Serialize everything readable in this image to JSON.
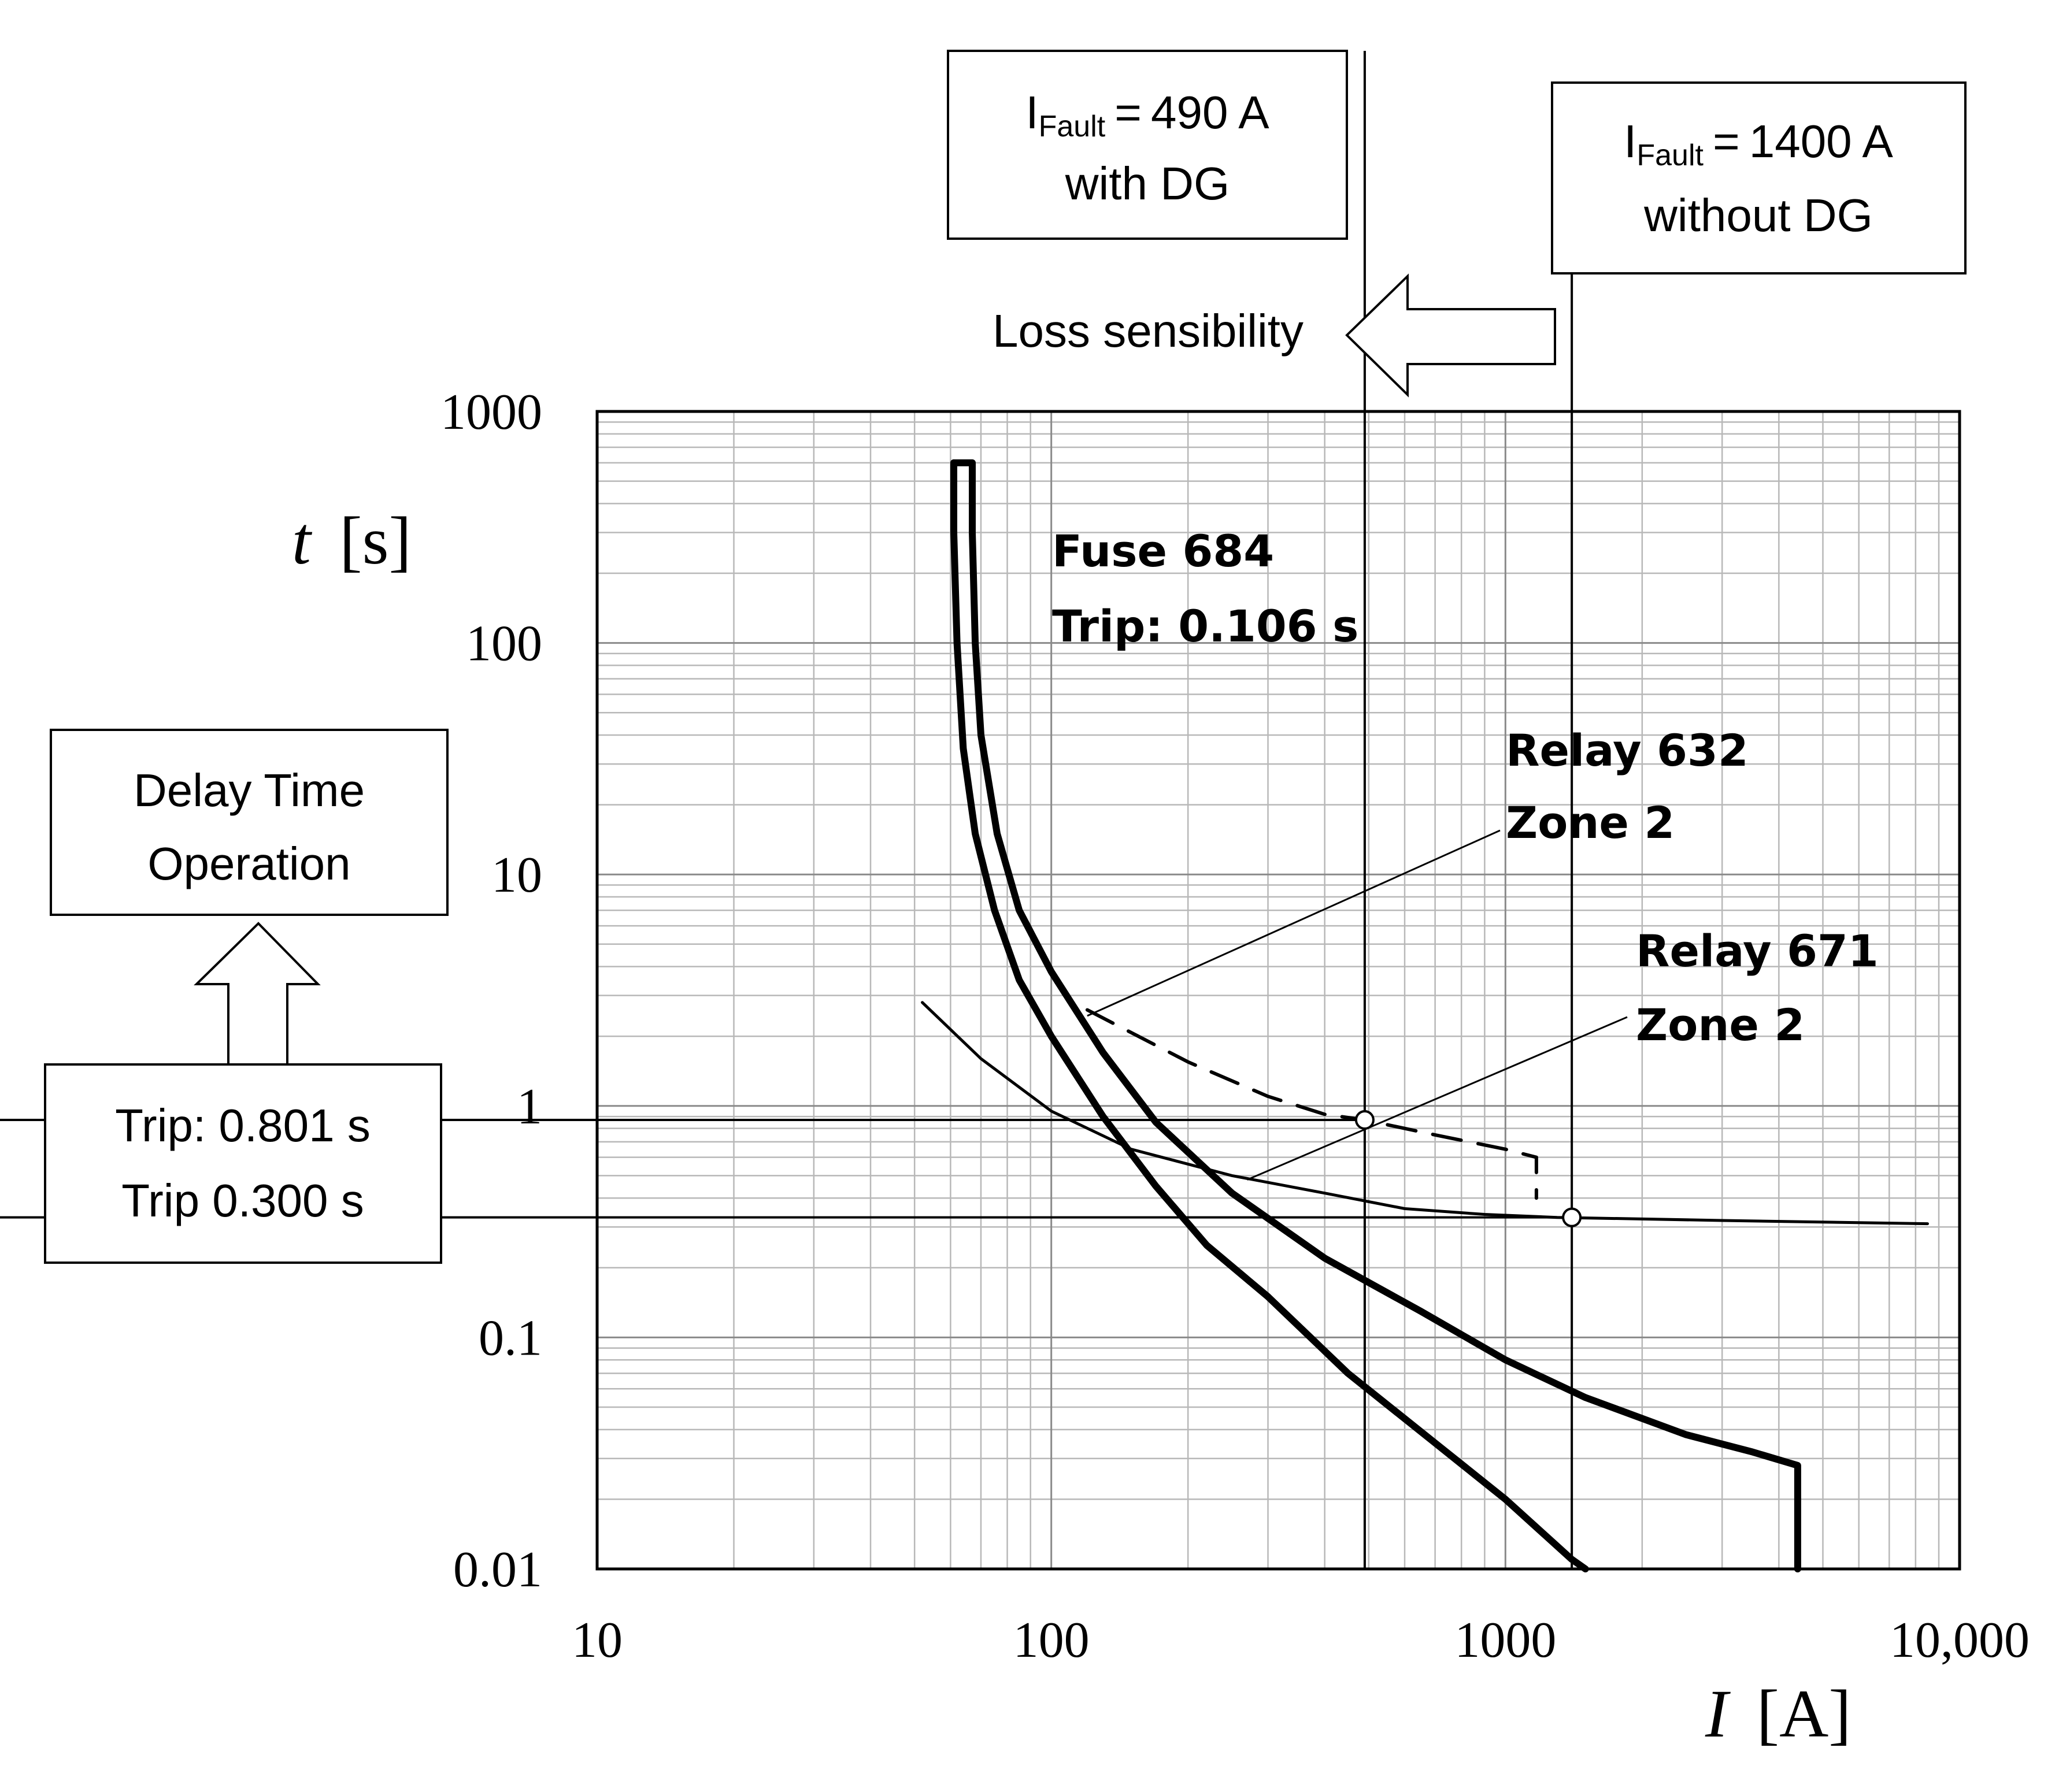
{
  "chart_data": {
    "type": "line",
    "x_scale": "log",
    "y_scale": "log",
    "xlim": [
      10,
      10000
    ],
    "ylim": [
      0.01,
      1000
    ],
    "x_ticks": [
      {
        "value": 10,
        "label": "10"
      },
      {
        "value": 100,
        "label": "100"
      },
      {
        "value": 1000,
        "label": "1000"
      },
      {
        "value": 10000,
        "label": "10,000"
      }
    ],
    "y_ticks": [
      {
        "value": 0.01,
        "label": "0.01"
      },
      {
        "value": 0.1,
        "label": "0.1"
      },
      {
        "value": 1,
        "label": "1"
      },
      {
        "value": 10,
        "label": "10"
      },
      {
        "value": 100,
        "label": "100"
      },
      {
        "value": 1000,
        "label": "1000"
      }
    ],
    "xlabel": {
      "symbol": "I",
      "unit": "[A]"
    },
    "ylabel": {
      "symbol": "t",
      "unit": "[s]"
    },
    "grid": true,
    "series": [
      {
        "id": "fuse-min",
        "points": [
          [
            61,
            600
          ],
          [
            61,
            300
          ],
          [
            62,
            100
          ],
          [
            64,
            35
          ],
          [
            68,
            15
          ],
          [
            75,
            7
          ],
          [
            85,
            3.5
          ],
          [
            100,
            2
          ],
          [
            130,
            0.9
          ],
          [
            170,
            0.45
          ],
          [
            220,
            0.25
          ],
          [
            300,
            0.15
          ],
          [
            450,
            0.07
          ],
          [
            700,
            0.035
          ],
          [
            1000,
            0.02
          ],
          [
            1400,
            0.011
          ],
          [
            1500,
            0.01
          ]
        ]
      },
      {
        "id": "fuse-max",
        "points": [
          [
            61,
            600
          ],
          [
            67,
            600
          ],
          [
            67,
            300
          ],
          [
            68,
            100
          ],
          [
            70,
            40
          ],
          [
            76,
            15
          ],
          [
            85,
            7
          ],
          [
            100,
            3.8
          ],
          [
            130,
            1.7
          ],
          [
            170,
            0.85
          ],
          [
            250,
            0.42
          ],
          [
            400,
            0.22
          ],
          [
            650,
            0.13
          ],
          [
            1000,
            0.08
          ],
          [
            1500,
            0.055
          ],
          [
            2500,
            0.038
          ],
          [
            3500,
            0.032
          ],
          [
            4400,
            0.028
          ],
          [
            4400,
            0.01
          ]
        ]
      },
      {
        "id": "relay-671",
        "points": [
          [
            52,
            2.8
          ],
          [
            70,
            1.6
          ],
          [
            100,
            0.95
          ],
          [
            150,
            0.65
          ],
          [
            250,
            0.5
          ],
          [
            400,
            0.42
          ],
          [
            600,
            0.36
          ],
          [
            900,
            0.34
          ],
          [
            1300,
            0.33
          ],
          [
            3000,
            0.32
          ],
          [
            8500,
            0.31
          ]
        ]
      },
      {
        "id": "relay-632",
        "dashed": true,
        "points": [
          [
            120,
            2.6
          ],
          [
            200,
            1.55
          ],
          [
            300,
            1.1
          ],
          [
            400,
            0.92
          ],
          [
            490,
            0.87
          ],
          [
            700,
            0.75
          ],
          [
            1000,
            0.65
          ],
          [
            1170,
            0.6
          ],
          [
            1170,
            0.4
          ]
        ]
      }
    ],
    "markers": [
      {
        "x": 490,
        "y": 0.87
      },
      {
        "x": 1400,
        "y": 0.33
      }
    ],
    "vertical_lines": [
      {
        "x": 490,
        "label_top": "490 A",
        "label_bottom": "with DG"
      },
      {
        "x": 1400,
        "label_top": "1400 A",
        "label_bottom": "without DG"
      }
    ],
    "horizontal_lines": [
      {
        "y": 0.87
      },
      {
        "y": 0.33
      }
    ],
    "annotations": {
      "fault_symbol": "I",
      "fault_subscript": "Fault",
      "fault_equals": "=",
      "loss": "Loss sensibility",
      "fuse_line1": "Fuse 684",
      "fuse_line2": "Trip: 0.106 s",
      "relay632_line1": "Relay 632",
      "relay632_line2": "Zone 2",
      "relay671_line1": "Relay 671",
      "relay671_line2": "Zone 2",
      "delay_line1": "Delay Time",
      "delay_line2": "Operation",
      "trip_line1": "Trip: 0.801 s",
      "trip_line2": "Trip 0.300 s"
    }
  }
}
